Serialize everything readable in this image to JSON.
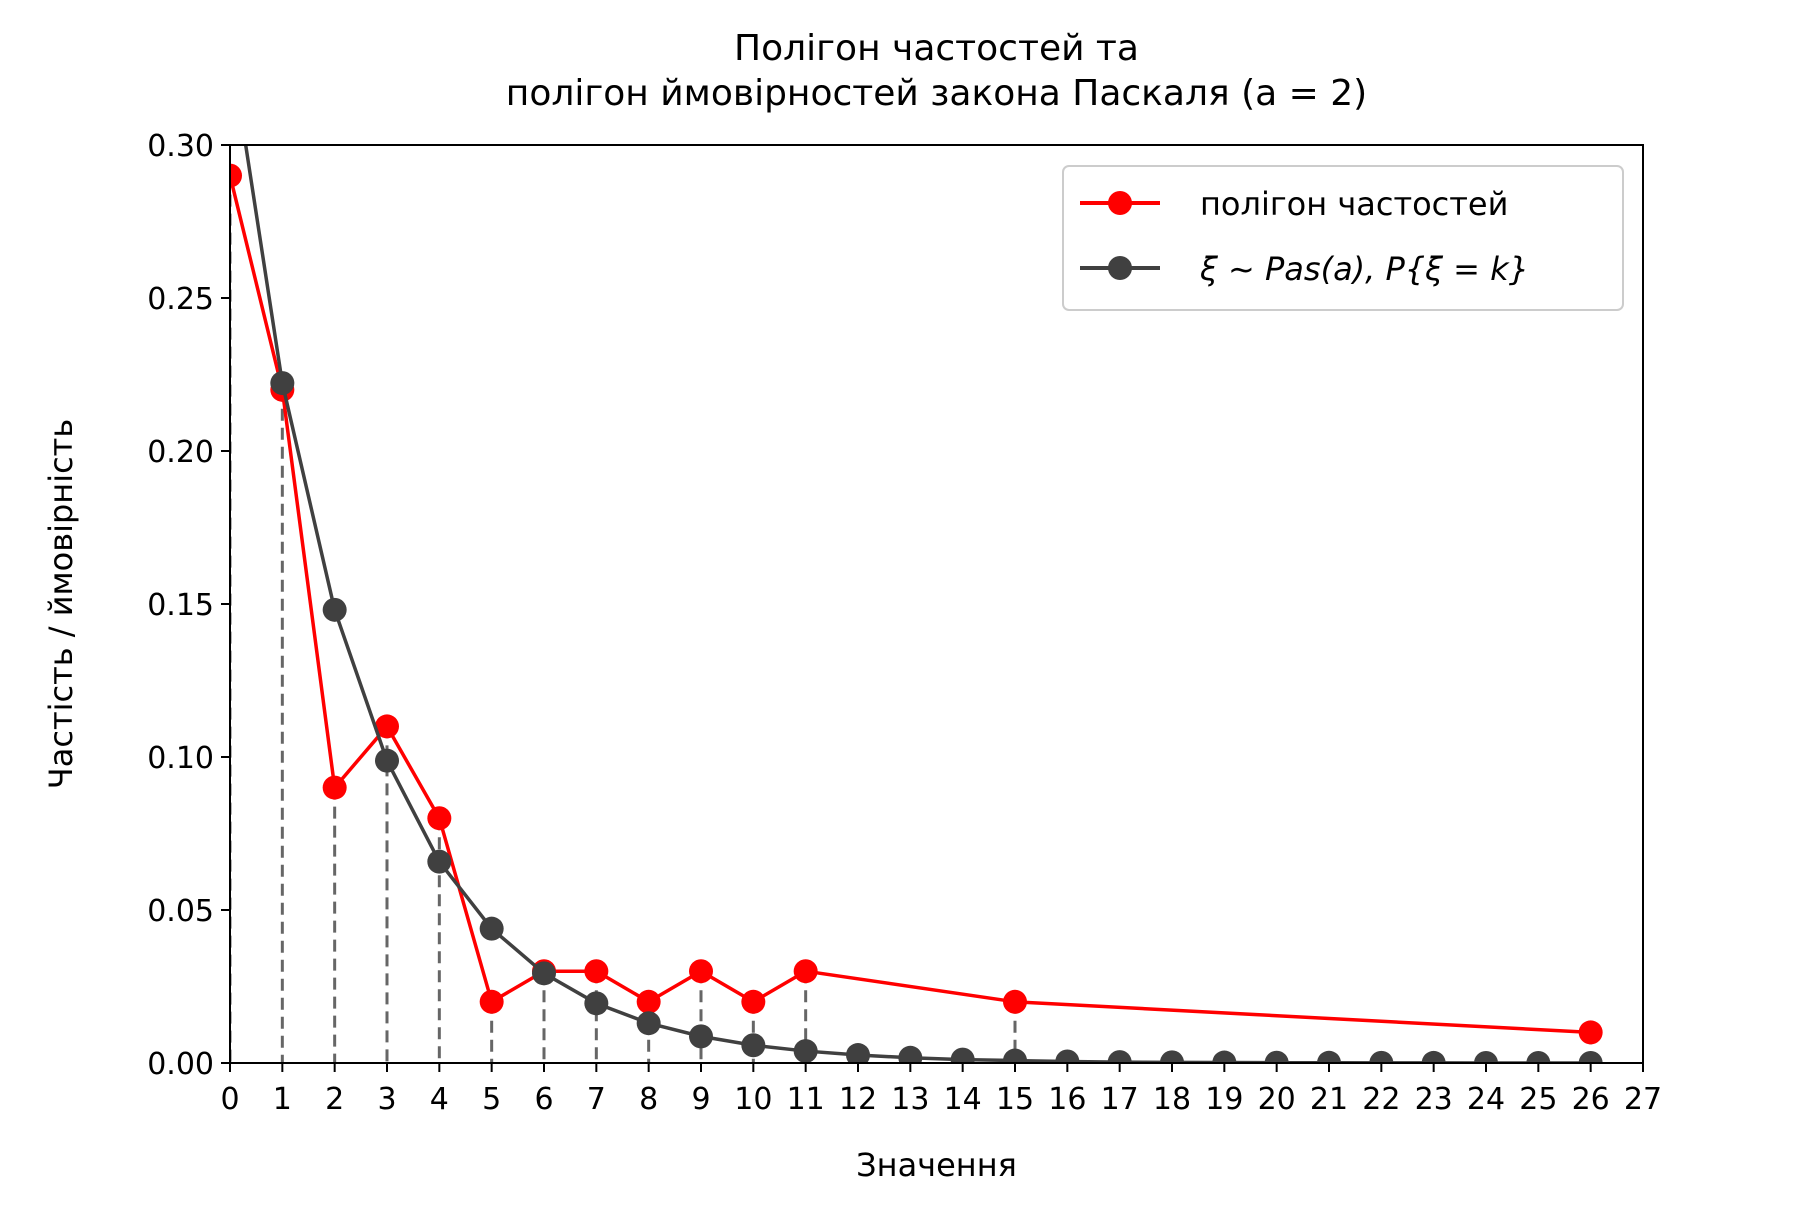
{
  "chart_data": {
    "type": "line",
    "title": "Полігон частостей та\nполігон ймовірностей закона Паскаля (a = 2)",
    "xlabel": "Значення",
    "ylabel": "Частість / ймовірність",
    "xlim": [
      0,
      27
    ],
    "ylim": [
      0,
      0.3
    ],
    "x_ticks": [
      0,
      1,
      2,
      3,
      4,
      5,
      6,
      7,
      8,
      9,
      10,
      11,
      12,
      13,
      14,
      15,
      16,
      17,
      18,
      19,
      20,
      21,
      22,
      23,
      24,
      25,
      26,
      27
    ],
    "y_ticks": [
      0.0,
      0.05,
      0.1,
      0.15,
      0.2,
      0.25,
      0.3
    ],
    "y_tick_labels": [
      "0.00",
      "0.05",
      "0.10",
      "0.15",
      "0.20",
      "0.25",
      "0.30"
    ],
    "grid": false,
    "legend_position": "top-right",
    "series": [
      {
        "name": "полігон частостей",
        "color": "#ff0000",
        "x": [
          0,
          1,
          2,
          3,
          4,
          5,
          6,
          7,
          8,
          9,
          10,
          11,
          15,
          26
        ],
        "y": [
          0.29,
          0.22,
          0.09,
          0.11,
          0.08,
          0.02,
          0.03,
          0.03,
          0.02,
          0.03,
          0.02,
          0.03,
          0.02,
          0.01
        ],
        "stems": true
      },
      {
        "name": "ξ ~ Pas(a), P{ξ = k}",
        "color": "#404040",
        "x": [
          0,
          1,
          2,
          3,
          4,
          5,
          6,
          7,
          8,
          9,
          10,
          11,
          12,
          13,
          14,
          15,
          16,
          17,
          18,
          19,
          20,
          21,
          22,
          23,
          24,
          25,
          26
        ],
        "y": [
          0.3333,
          0.2222,
          0.1481,
          0.0988,
          0.0658,
          0.0439,
          0.0293,
          0.0195,
          0.013,
          0.0087,
          0.0058,
          0.0039,
          0.0026,
          0.0017,
          0.0011,
          0.0008,
          0.0005,
          0.0003,
          0.0002,
          0.00015,
          0.0001,
          7e-05,
          4e-05,
          3e-05,
          2e-05,
          1e-05,
          1e-05
        ]
      }
    ]
  }
}
